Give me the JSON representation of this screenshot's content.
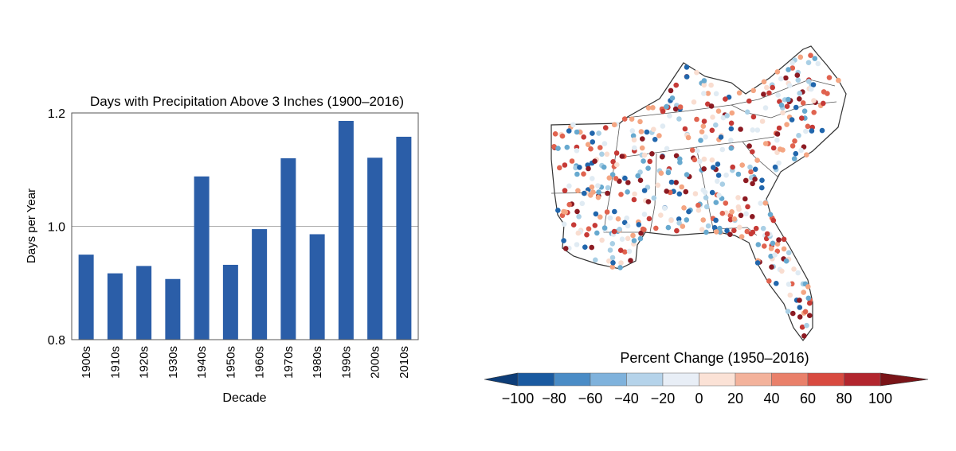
{
  "chart_data": [
    {
      "type": "bar",
      "title": "Days with Precipitation Above 3 Inches (1900–2016)",
      "xlabel": "Decade",
      "ylabel": "Days per Year",
      "ylim": [
        0.8,
        1.2
      ],
      "yticks": [
        "0.8",
        "1.0",
        "1.2"
      ],
      "ytick_values": [
        0.8,
        1.0,
        1.2
      ],
      "grid": true,
      "categories": [
        "1900s",
        "1910s",
        "1920s",
        "1930s",
        "1940s",
        "1950s",
        "1960s",
        "1970s",
        "1980s",
        "1990s",
        "2000s",
        "2010s"
      ],
      "values": [
        0.95,
        0.917,
        0.93,
        0.907,
        1.088,
        0.932,
        0.995,
        1.12,
        0.986,
        1.186,
        1.121,
        1.158
      ],
      "bar_color": "#2b5ea8"
    },
    {
      "type": "map-colorbar",
      "title": "Percent Change (1950–2016)",
      "colorbar_labels": [
        "−100",
        "−80",
        "−60",
        "−40",
        "−20",
        "0",
        "20",
        "40",
        "60",
        "80",
        "100"
      ],
      "colorbar_colors": [
        "#1a5aa0",
        "#4a8cc6",
        "#7fb2dc",
        "#b5d3ea",
        "#e8eef6",
        "#fbe2d6",
        "#f3b29b",
        "#e9806a",
        "#d84a40",
        "#b2262e"
      ],
      "arrow_colors": [
        "#0d3d78",
        "#7a1418"
      ],
      "station_palette": [
        "#2166ac",
        "#67a9cf",
        "#a9cfe5",
        "#e0ebf3",
        "#f9ddd0",
        "#f4a582",
        "#e0634f",
        "#c63a36",
        "#8c1a22"
      ]
    }
  ]
}
